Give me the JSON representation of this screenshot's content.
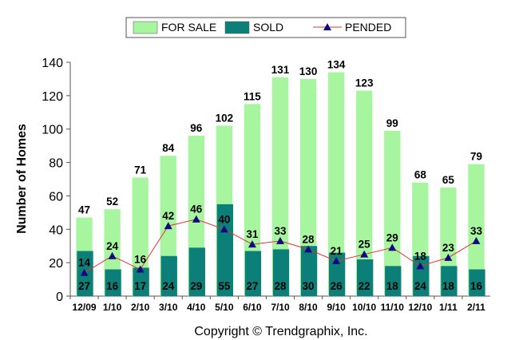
{
  "chart_data": {
    "type": "bar",
    "ylabel": "Number of Homes",
    "ylim": [
      0,
      140
    ],
    "yticks": [
      0,
      20,
      40,
      60,
      80,
      100,
      120,
      140
    ],
    "grid": false,
    "legend_position": "top",
    "categories": [
      "12/09",
      "1/10",
      "2/10",
      "3/10",
      "4/10",
      "5/10",
      "6/10",
      "7/10",
      "8/10",
      "9/10",
      "10/10",
      "11/10",
      "12/10",
      "1/11",
      "2/11"
    ],
    "series": [
      {
        "name": "FOR SALE",
        "kind": "bar",
        "color": "#a8f5a0",
        "values": [
          47,
          52,
          71,
          84,
          96,
          102,
          115,
          131,
          130,
          134,
          123,
          99,
          68,
          65,
          79
        ]
      },
      {
        "name": "SOLD",
        "kind": "bar",
        "color": "#0c8078",
        "values": [
          27,
          16,
          17,
          24,
          29,
          55,
          27,
          28,
          30,
          26,
          22,
          18,
          24,
          18,
          16
        ]
      },
      {
        "name": "PENDED",
        "kind": "line",
        "color": "#e83030",
        "marker_color": "#0c0c80",
        "values": [
          14,
          24,
          16,
          42,
          46,
          40,
          31,
          33,
          28,
          21,
          25,
          29,
          18,
          23,
          33
        ]
      }
    ]
  },
  "footer": {
    "copyright": "Copyright © Trendgraphix, Inc."
  }
}
